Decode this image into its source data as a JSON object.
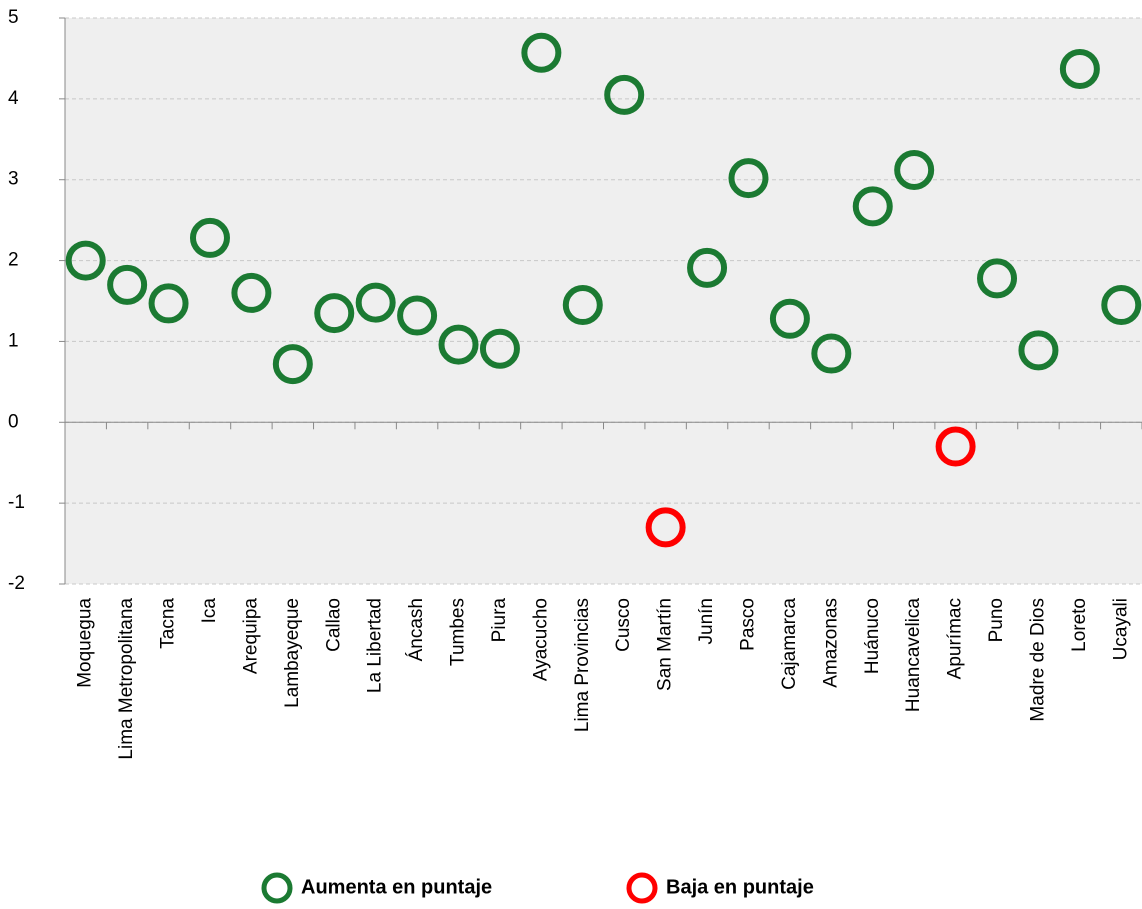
{
  "chart_data": {
    "type": "scatter",
    "categories": [
      "Moquegua",
      "Lima Metropolitana",
      "Tacna",
      "Ica",
      "Arequipa",
      "Lambayeque",
      "Callao",
      "La Libertad",
      "Áncash",
      "Tumbes",
      "Piura",
      "Ayacucho",
      "Lima Provincias",
      "Cusco",
      "San Martín",
      "Junín",
      "Pasco",
      "Cajamarca",
      "Amazonas",
      "Huánuco",
      "Huancavelica",
      "Apurímac",
      "Puno",
      "Madre de Dios",
      "Loreto",
      "Ucayali"
    ],
    "series": [
      {
        "name": "Aumenta en puntaje",
        "color": "#1b7a32",
        "values": [
          2.0,
          1.7,
          1.47,
          2.28,
          1.6,
          0.72,
          1.35,
          1.48,
          1.32,
          0.96,
          0.91,
          4.57,
          1.45,
          4.05,
          null,
          1.91,
          3.02,
          1.28,
          0.85,
          2.67,
          3.12,
          null,
          1.78,
          0.89,
          4.37,
          1.45
        ]
      },
      {
        "name": "Baja en puntaje",
        "color": "#ff0000",
        "values": [
          null,
          null,
          null,
          null,
          null,
          null,
          null,
          null,
          null,
          null,
          null,
          null,
          null,
          null,
          -1.3,
          null,
          null,
          null,
          null,
          null,
          null,
          -0.3,
          null,
          null,
          null,
          null
        ]
      }
    ],
    "ylim": [
      -2,
      5
    ],
    "yticks": [
      -2,
      -1,
      0,
      1,
      2,
      3,
      4,
      5
    ],
    "grid": true
  }
}
